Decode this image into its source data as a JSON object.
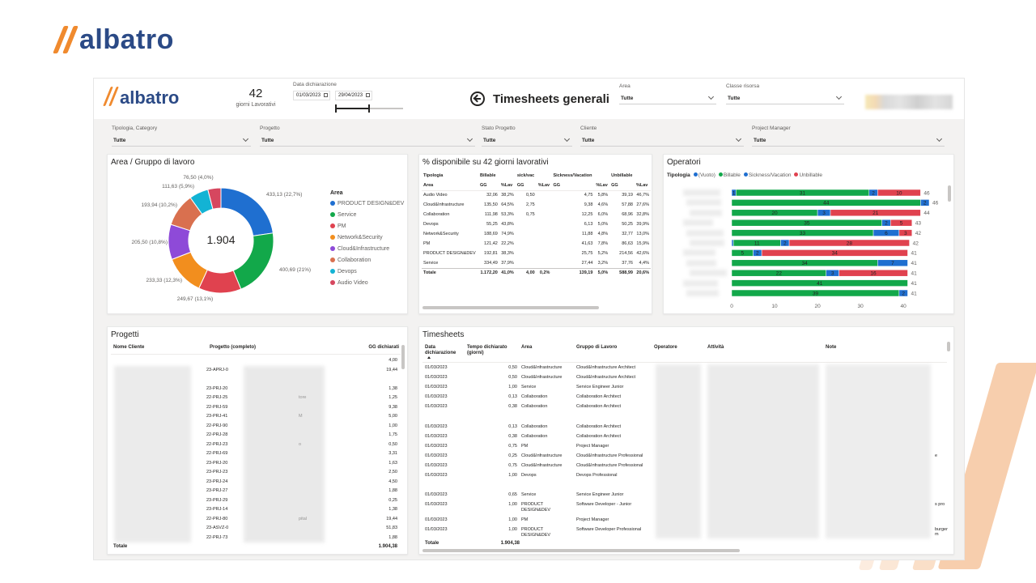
{
  "brand": {
    "logo_text": "albatro"
  },
  "kpi": {
    "value": "42",
    "label": "giorni Lavorativi"
  },
  "date_range": {
    "label": "Data dichiarazione",
    "start": "01/03/2023",
    "end": "29/04/2023"
  },
  "page_title": "Timesheets generali",
  "top_slicers": [
    {
      "label": "Area",
      "value": "Tutte"
    },
    {
      "label": "Classe risorsa",
      "value": "Tutte"
    }
  ],
  "filters": [
    {
      "label": "Tipologia, Category",
      "value": "Tutte"
    },
    {
      "label": "Progetto",
      "value": "Tutte"
    },
    {
      "label": "Stato Progetto",
      "value": "Tutte"
    },
    {
      "label": "Cliente",
      "value": "Tutte"
    },
    {
      "label": "Project Manager",
      "value": "Tutte"
    }
  ],
  "donut_panel": {
    "title": "Area / Gruppo di lavoro",
    "total": "1.904",
    "legend_title": "Area",
    "slices": [
      {
        "name": "PRODUCT DESIGN&DEV",
        "value": 433.13,
        "label": "433,13 (22,7%)",
        "color": "#1f6fd0"
      },
      {
        "name": "Service",
        "value": 400.69,
        "label": "400,69 (21%)",
        "color": "#12a84a"
      },
      {
        "name": "PM",
        "value": 249.67,
        "label": "249,67 (13,1%)",
        "color": "#e0424f"
      },
      {
        "name": "Network&Security",
        "value": 233.33,
        "label": "233,33 (12,3%)",
        "color": "#f28e1e"
      },
      {
        "name": "Cloud&Infrastructure",
        "value": 205.5,
        "label": "205,50 (10,8%)",
        "color": "#8e4ad8"
      },
      {
        "name": "Collaboration",
        "value": 193.94,
        "label": "193,94 (10,2%)",
        "color": "#d9704f"
      },
      {
        "name": "Devops",
        "value": 111.63,
        "label": "111,63 (5,9%)",
        "color": "#13b3d4"
      },
      {
        "name": "Audio Video",
        "value": 76.5,
        "label": "76,50 (4,0%)",
        "color": "#d6475f"
      }
    ]
  },
  "disp_panel": {
    "title": "% disponibile su 42 giorni lavorativi",
    "header_top": [
      "Tipologia",
      "Billable",
      "",
      "sick/vac",
      "",
      "Sickness/Vacation",
      "",
      "Unbillable",
      ""
    ],
    "header_sub": [
      "Area",
      "GG",
      "%Lav",
      "GG",
      "%Lav",
      "GG",
      "%Lav",
      "GG",
      "%Lav"
    ],
    "rows": [
      [
        "Audio Video",
        "32,06",
        "38,2%",
        "0,50",
        "",
        "4,75",
        "5,8%",
        "39,19",
        "46,7%"
      ],
      [
        "Cloud&Infrastructure",
        "135,50",
        "64,5%",
        "2,75",
        "",
        "9,38",
        "4,6%",
        "57,88",
        "27,6%"
      ],
      [
        "Collaboration",
        "111,98",
        "53,3%",
        "0,75",
        "",
        "12,25",
        "6,0%",
        "68,96",
        "32,8%"
      ],
      [
        "Devops",
        "55,25",
        "43,8%",
        "",
        "",
        "6,13",
        "5,0%",
        "50,25",
        "39,9%"
      ],
      [
        "Network&Security",
        "188,69",
        "74,9%",
        "",
        "",
        "11,88",
        "4,8%",
        "32,77",
        "13,0%"
      ],
      [
        "PM",
        "121,42",
        "22,2%",
        "",
        "",
        "41,63",
        "7,8%",
        "86,63",
        "15,9%"
      ],
      [
        "PRODUCT DESIGN&DEV",
        "192,81",
        "38,3%",
        "",
        "",
        "25,75",
        "5,2%",
        "214,56",
        "42,6%"
      ],
      [
        "Service",
        "334,49",
        "37,9%",
        "",
        "",
        "27,44",
        "3,2%",
        "37,76",
        "4,4%"
      ]
    ],
    "total": [
      "Totale",
      "1.172,20",
      "41,0%",
      "4,00",
      "0,2%",
      "139,19",
      "5,0%",
      "588,99",
      "20,6%"
    ]
  },
  "operators_panel": {
    "title": "Operatori",
    "legend_title": "Tipologia",
    "legend": [
      {
        "name": "(Vuoto)",
        "color": "#1f6fd0"
      },
      {
        "name": "Billable",
        "color": "#12a84a"
      },
      {
        "name": "Sickness/Vacation",
        "color": "#1f6fd0"
      },
      {
        "name": "Unbillable",
        "color": "#e0424f"
      }
    ],
    "axis_ticks": [
      "0",
      "10",
      "20",
      "30",
      "40"
    ],
    "xmax": 46,
    "bars": [
      {
        "segments": [
          {
            "v": 1,
            "c": "#1f6fd0",
            "t": "1"
          },
          {
            "v": 31,
            "c": "#12a84a",
            "t": "31"
          },
          {
            "v": 2,
            "c": "#1f6fd0",
            "t": "2"
          },
          {
            "v": 10,
            "c": "#e0424f",
            "t": "10"
          }
        ],
        "total": "46"
      },
      {
        "segments": [
          {
            "v": 44,
            "c": "#12a84a",
            "t": "44"
          },
          {
            "v": 2,
            "c": "#1f6fd0",
            "t": "2"
          }
        ],
        "total": "46"
      },
      {
        "segments": [
          {
            "v": 20,
            "c": "#12a84a",
            "t": "20"
          },
          {
            "v": 3,
            "c": "#1f6fd0",
            "t": "3"
          },
          {
            "v": 21,
            "c": "#e0424f",
            "t": "21"
          }
        ],
        "total": "44"
      },
      {
        "segments": [
          {
            "v": 35,
            "c": "#12a84a",
            "t": "35"
          },
          {
            "v": 2,
            "c": "#1f6fd0",
            "t": "2"
          },
          {
            "v": 5,
            "c": "#e0424f",
            "t": "5"
          }
        ],
        "total": "43"
      },
      {
        "segments": [
          {
            "v": 33,
            "c": "#12a84a",
            "t": "33"
          },
          {
            "v": 6,
            "c": "#1f6fd0",
            "t": "6"
          },
          {
            "v": 3,
            "c": "#e0424f",
            "t": "3"
          }
        ],
        "total": "42"
      },
      {
        "segments": [
          {
            "v": 0.4,
            "c": "#1f6fd0",
            "t": ""
          },
          {
            "v": 11,
            "c": "#12a84a",
            "t": "11"
          },
          {
            "v": 2,
            "c": "#1f6fd0",
            "t": "2"
          },
          {
            "v": 28,
            "c": "#e0424f",
            "t": "28"
          }
        ],
        "total": "42"
      },
      {
        "segments": [
          {
            "v": 5,
            "c": "#12a84a",
            "t": "5"
          },
          {
            "v": 2,
            "c": "#1f6fd0",
            "t": "2"
          },
          {
            "v": 34,
            "c": "#e0424f",
            "t": "34"
          }
        ],
        "total": "41"
      },
      {
        "segments": [
          {
            "v": 34,
            "c": "#12a84a",
            "t": "34"
          },
          {
            "v": 7,
            "c": "#1f6fd0",
            "t": "7"
          }
        ],
        "total": "41"
      },
      {
        "segments": [
          {
            "v": 22,
            "c": "#12a84a",
            "t": "22"
          },
          {
            "v": 3,
            "c": "#1f6fd0",
            "t": "3"
          },
          {
            "v": 16,
            "c": "#e0424f",
            "t": "16"
          }
        ],
        "total": "41"
      },
      {
        "segments": [
          {
            "v": 41,
            "c": "#12a84a",
            "t": "41"
          }
        ],
        "total": "41"
      },
      {
        "segments": [
          {
            "v": 39,
            "c": "#12a84a",
            "t": "39"
          },
          {
            "v": 2,
            "c": "#1f6fd0",
            "t": "2"
          }
        ],
        "total": "41"
      }
    ]
  },
  "projects_panel": {
    "title": "Progetti",
    "headers": [
      "Nome Cliente",
      "Progetto (completo)",
      "GG dichiarati"
    ],
    "rows": [
      [
        "",
        "",
        "4,00"
      ],
      [
        "",
        "23-APRJ-0",
        "19,44"
      ],
      [
        "",
        "",
        ""
      ],
      [
        "",
        "23-PRJ-20",
        "1,38"
      ],
      [
        "",
        "22-PRJ-25",
        "1,25"
      ],
      [
        "",
        "22-PRJ-59",
        "9,38"
      ],
      [
        "",
        "23-PRJ-41",
        "5,00"
      ],
      [
        "",
        "22-PRJ-90",
        "1,00"
      ],
      [
        "",
        "22-PRJ-28",
        "1,75"
      ],
      [
        "",
        "22-PRJ-23",
        "0,50"
      ],
      [
        "",
        "22-PRJ-69",
        "3,31"
      ],
      [
        "",
        "23-PRJ-20",
        "1,63"
      ],
      [
        "",
        "23-PRJ-23",
        "2,50"
      ],
      [
        "",
        "23-PRJ-24",
        "4,50"
      ],
      [
        "",
        "23-PRJ-27",
        "1,88"
      ],
      [
        "",
        "23-PRJ-29",
        "0,25"
      ],
      [
        "",
        "23-PRJ-14",
        "1,38"
      ],
      [
        "",
        "22-PRJ-80",
        "19,44"
      ],
      [
        "",
        "23-ASVZ-0",
        "51,83"
      ],
      [
        "",
        "22-PRJ-73",
        "1,88"
      ]
    ],
    "fragments": [
      "tore",
      "M",
      "o",
      "pital"
    ],
    "total_label": "Totale",
    "total_value": "1.904,38"
  },
  "timesheets_panel": {
    "title": "Timesheets",
    "headers": [
      "Data dichiarazione",
      "Tempo dichiarato (giorni)",
      "Area",
      "Gruppo di Lavoro",
      "Operatore",
      "Attività",
      "Note"
    ],
    "rows": [
      [
        "01/03/2023",
        "0,50",
        "Cloud&Infrastructure",
        "Cloud&Infrastructure Architect"
      ],
      [
        "01/03/2023",
        "0,50",
        "Cloud&Infrastructure",
        "Cloud&Infrastructure Architect"
      ],
      [
        "01/03/2023",
        "1,00",
        "Service",
        "Service Engineer Junior"
      ],
      [
        "01/03/2023",
        "0,13",
        "Collaboration",
        "Collaboration Architect"
      ],
      [
        "01/03/2023",
        "0,38",
        "Collaboration",
        "Collaboration Architect"
      ],
      [
        "",
        "",
        "",
        ""
      ],
      [
        "01/03/2023",
        "0,13",
        "Collaboration",
        "Collaboration Architect"
      ],
      [
        "01/03/2023",
        "0,38",
        "Collaboration",
        "Collaboration Architect"
      ],
      [
        "01/03/2023",
        "0,75",
        "PM",
        "Project Manager"
      ],
      [
        "01/03/2023",
        "0,25",
        "Cloud&Infrastructure",
        "Cloud&Infrastructure Professional"
      ],
      [
        "01/03/2023",
        "0,75",
        "Cloud&Infrastructure",
        "Cloud&Infrastructure Professional"
      ],
      [
        "01/03/2023",
        "1,00",
        "Devops",
        "Devops Professional"
      ],
      [
        "",
        "",
        "",
        ""
      ],
      [
        "01/03/2023",
        "0,65",
        "Service",
        "Service Engineer Junior"
      ],
      [
        "01/03/2023",
        "1,00",
        "PRODUCT DESIGN&DEV",
        "Software Developer - Junior"
      ],
      [
        "01/03/2023",
        "1,00",
        "PM",
        "Project Manager"
      ],
      [
        "01/03/2023",
        "1,00",
        "PRODUCT DESIGN&DEV",
        "Software Developer Professional"
      ]
    ],
    "note_fragments": [
      "e",
      "s pro",
      "burger m"
    ],
    "total_label": "Totale",
    "total_value": "1.904,38"
  }
}
